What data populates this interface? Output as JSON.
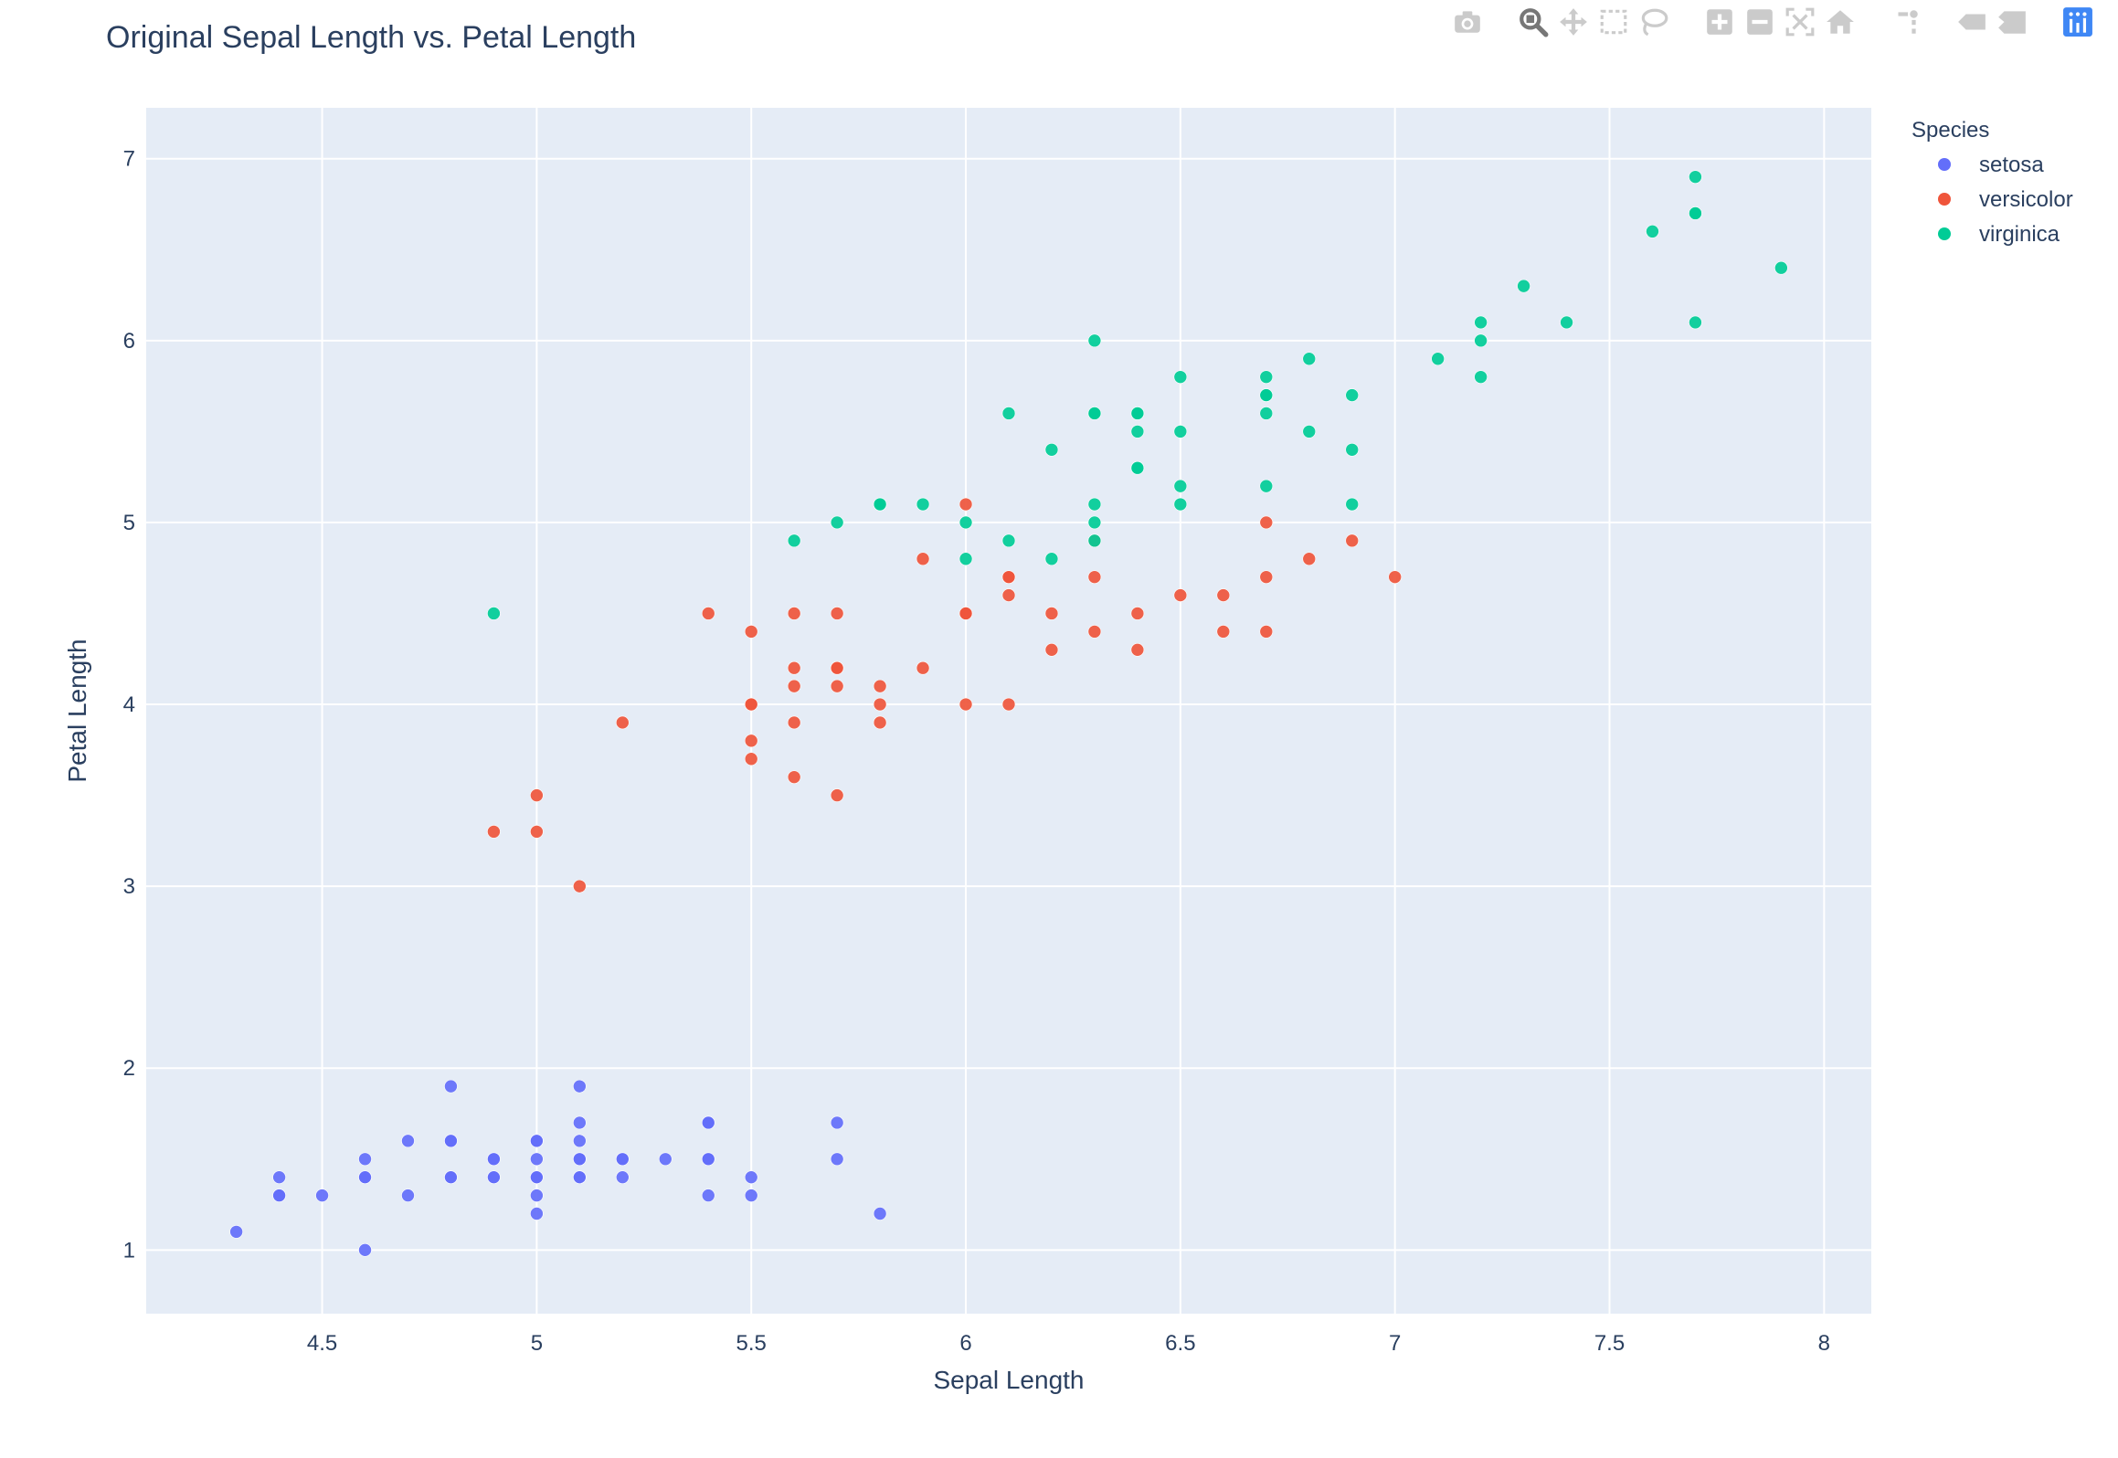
{
  "modebar": {
    "buttons": [
      {
        "icon": "camera-icon",
        "name": "download-plot-button"
      },
      {
        "icon": "zoom-icon",
        "name": "zoom-button",
        "active": true
      },
      {
        "icon": "pan-icon",
        "name": "pan-button"
      },
      {
        "icon": "box-select-icon",
        "name": "box-select-button"
      },
      {
        "icon": "lasso-select-icon",
        "name": "lasso-select-button"
      },
      {
        "icon": "zoom-in-icon",
        "name": "zoom-in-button"
      },
      {
        "icon": "zoom-out-icon",
        "name": "zoom-out-button"
      },
      {
        "icon": "autoscale-icon",
        "name": "autoscale-button"
      },
      {
        "icon": "home-icon",
        "name": "reset-axes-button"
      },
      {
        "icon": "spike-lines-icon",
        "name": "spike-lines-button"
      },
      {
        "icon": "hover-closest-icon",
        "name": "hover-closest-button"
      },
      {
        "icon": "hover-compare-icon",
        "name": "hover-compare-button"
      },
      {
        "icon": "plotly-logo-icon",
        "name": "plotly-logo-link"
      }
    ],
    "icon_color": "#cbcbcb",
    "active_color": "#777777",
    "logo_color": "#3f87f5"
  },
  "chart_data": {
    "type": "scatter",
    "title": "Original Sepal Length vs. Petal Length",
    "xlabel": "Sepal Length",
    "ylabel": "Petal Length",
    "xlim": [
      4.09,
      8.11
    ],
    "ylim": [
      0.65,
      7.28
    ],
    "xticks": [
      4.5,
      5,
      5.5,
      6,
      6.5,
      7,
      7.5,
      8
    ],
    "xtick_labels": [
      "4.5",
      "5",
      "5.5",
      "6",
      "6.5",
      "7",
      "7.5",
      "8"
    ],
    "yticks": [
      1,
      2,
      3,
      4,
      5,
      6,
      7
    ],
    "ytick_labels": [
      "1",
      "2",
      "3",
      "4",
      "5",
      "6",
      "7"
    ],
    "grid": true,
    "plot_bgcolor": "#e5ecf6",
    "legend": {
      "title": "Species",
      "placement": "top-right-outside"
    },
    "series": [
      {
        "name": "setosa",
        "color": "#636efa",
        "points": [
          [
            5.1,
            1.4
          ],
          [
            4.9,
            1.4
          ],
          [
            4.7,
            1.3
          ],
          [
            4.6,
            1.5
          ],
          [
            5.0,
            1.4
          ],
          [
            5.4,
            1.7
          ],
          [
            4.6,
            1.4
          ],
          [
            5.0,
            1.5
          ],
          [
            4.4,
            1.4
          ],
          [
            4.9,
            1.5
          ],
          [
            5.4,
            1.5
          ],
          [
            4.8,
            1.6
          ],
          [
            4.8,
            1.4
          ],
          [
            4.3,
            1.1
          ],
          [
            5.8,
            1.2
          ],
          [
            5.7,
            1.5
          ],
          [
            5.4,
            1.3
          ],
          [
            5.1,
            1.4
          ],
          [
            5.7,
            1.7
          ],
          [
            5.1,
            1.5
          ],
          [
            5.4,
            1.7
          ],
          [
            5.1,
            1.5
          ],
          [
            4.6,
            1.0
          ],
          [
            5.1,
            1.7
          ],
          [
            4.8,
            1.9
          ],
          [
            5.0,
            1.6
          ],
          [
            5.0,
            1.6
          ],
          [
            5.2,
            1.5
          ],
          [
            5.2,
            1.4
          ],
          [
            4.7,
            1.6
          ],
          [
            4.8,
            1.6
          ],
          [
            5.4,
            1.5
          ],
          [
            5.2,
            1.5
          ],
          [
            5.5,
            1.4
          ],
          [
            4.9,
            1.5
          ],
          [
            5.0,
            1.2
          ],
          [
            5.5,
            1.3
          ],
          [
            4.9,
            1.4
          ],
          [
            4.4,
            1.3
          ],
          [
            5.1,
            1.5
          ],
          [
            5.0,
            1.3
          ],
          [
            4.5,
            1.3
          ],
          [
            4.4,
            1.3
          ],
          [
            5.0,
            1.6
          ],
          [
            5.1,
            1.9
          ],
          [
            4.8,
            1.4
          ],
          [
            5.1,
            1.6
          ],
          [
            4.6,
            1.4
          ],
          [
            5.3,
            1.5
          ],
          [
            5.0,
            1.4
          ]
        ]
      },
      {
        "name": "versicolor",
        "color": "#ef553b",
        "points": [
          [
            7.0,
            4.7
          ],
          [
            6.4,
            4.5
          ],
          [
            6.9,
            4.9
          ],
          [
            5.5,
            4.0
          ],
          [
            6.5,
            4.6
          ],
          [
            5.7,
            4.5
          ],
          [
            6.3,
            4.7
          ],
          [
            4.9,
            3.3
          ],
          [
            6.6,
            4.6
          ],
          [
            5.2,
            3.9
          ],
          [
            5.0,
            3.5
          ],
          [
            5.9,
            4.2
          ],
          [
            6.0,
            4.0
          ],
          [
            6.1,
            4.7
          ],
          [
            5.6,
            3.6
          ],
          [
            6.7,
            4.4
          ],
          [
            5.6,
            4.5
          ],
          [
            5.8,
            4.1
          ],
          [
            6.2,
            4.5
          ],
          [
            5.6,
            3.9
          ],
          [
            5.9,
            4.8
          ],
          [
            6.1,
            4.0
          ],
          [
            6.3,
            4.9
          ],
          [
            6.1,
            4.7
          ],
          [
            6.4,
            4.3
          ],
          [
            6.6,
            4.4
          ],
          [
            6.8,
            4.8
          ],
          [
            6.7,
            5.0
          ],
          [
            6.0,
            4.5
          ],
          [
            5.7,
            3.5
          ],
          [
            5.5,
            3.8
          ],
          [
            5.5,
            3.7
          ],
          [
            5.8,
            3.9
          ],
          [
            6.0,
            5.1
          ],
          [
            5.4,
            4.5
          ],
          [
            6.0,
            4.5
          ],
          [
            6.7,
            4.7
          ],
          [
            6.3,
            4.4
          ],
          [
            5.6,
            4.1
          ],
          [
            5.5,
            4.0
          ],
          [
            5.5,
            4.4
          ],
          [
            6.1,
            4.6
          ],
          [
            5.8,
            4.0
          ],
          [
            5.0,
            3.3
          ],
          [
            5.6,
            4.2
          ],
          [
            5.7,
            4.2
          ],
          [
            5.7,
            4.2
          ],
          [
            6.2,
            4.3
          ],
          [
            5.1,
            3.0
          ],
          [
            5.7,
            4.1
          ]
        ]
      },
      {
        "name": "virginica",
        "color": "#00cc96",
        "points": [
          [
            6.3,
            6.0
          ],
          [
            5.8,
            5.1
          ],
          [
            7.1,
            5.9
          ],
          [
            6.3,
            5.6
          ],
          [
            6.5,
            5.8
          ],
          [
            7.6,
            6.6
          ],
          [
            4.9,
            4.5
          ],
          [
            7.3,
            6.3
          ],
          [
            6.7,
            5.8
          ],
          [
            7.2,
            6.1
          ],
          [
            6.5,
            5.1
          ],
          [
            6.4,
            5.3
          ],
          [
            6.8,
            5.5
          ],
          [
            5.7,
            5.0
          ],
          [
            5.8,
            5.1
          ],
          [
            6.4,
            5.3
          ],
          [
            6.5,
            5.5
          ],
          [
            7.7,
            6.7
          ],
          [
            7.7,
            6.9
          ],
          [
            6.0,
            5.0
          ],
          [
            6.9,
            5.7
          ],
          [
            5.6,
            4.9
          ],
          [
            7.7,
            6.7
          ],
          [
            6.3,
            4.9
          ],
          [
            6.7,
            5.7
          ],
          [
            7.2,
            6.0
          ],
          [
            6.2,
            4.8
          ],
          [
            6.1,
            4.9
          ],
          [
            6.4,
            5.6
          ],
          [
            7.2,
            5.8
          ],
          [
            7.4,
            6.1
          ],
          [
            7.9,
            6.4
          ],
          [
            6.4,
            5.6
          ],
          [
            6.3,
            5.1
          ],
          [
            6.1,
            5.6
          ],
          [
            7.7,
            6.1
          ],
          [
            6.3,
            5.6
          ],
          [
            6.4,
            5.5
          ],
          [
            6.0,
            4.8
          ],
          [
            6.9,
            5.4
          ],
          [
            6.7,
            5.6
          ],
          [
            6.9,
            5.1
          ],
          [
            5.8,
            5.1
          ],
          [
            6.8,
            5.9
          ],
          [
            6.7,
            5.7
          ],
          [
            6.7,
            5.2
          ],
          [
            6.3,
            5.0
          ],
          [
            6.5,
            5.2
          ],
          [
            6.2,
            5.4
          ],
          [
            5.9,
            5.1
          ]
        ]
      }
    ]
  }
}
